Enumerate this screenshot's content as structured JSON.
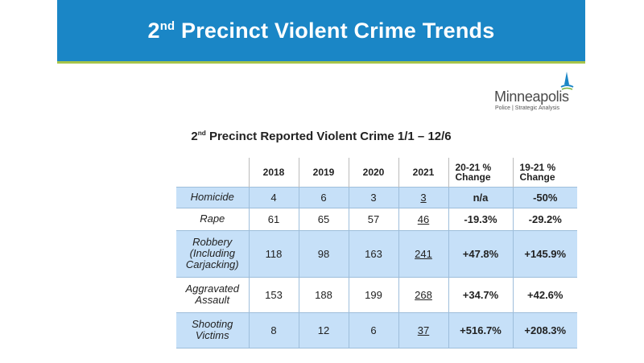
{
  "banner": {
    "title_pre": "2",
    "title_sup": "nd",
    "title_post": " Precinct Violent Crime Trends"
  },
  "logo": {
    "word": "Minneapolis",
    "tagline": "Police | Strategic Analysis"
  },
  "subtitle": {
    "pre": "2",
    "sup": "nd",
    "post": " Precinct Reported Violent Crime 1/1 – 12/6"
  },
  "table": {
    "headers": [
      "2018",
      "2019",
      "2020",
      "2021",
      "20-21 %",
      "Change",
      "19-21 %",
      "Change"
    ],
    "rows": [
      {
        "label": "Homicide",
        "v2018": "4",
        "v2019": "6",
        "v2020": "3",
        "v2021": "3",
        "chg2021": "n/a",
        "chg1921": "-50%"
      },
      {
        "label": "Rape",
        "v2018": "61",
        "v2019": "65",
        "v2020": "57",
        "v2021": "46",
        "chg2021": "-19.3%",
        "chg1921": "-29.2%"
      },
      {
        "label_l1": "Robbery",
        "label_l2": "(Including",
        "label_l3": "Carjacking)",
        "v2018": "118",
        "v2019": "98",
        "v2020": "163",
        "v2021": "241",
        "chg2021": "+47.8%",
        "chg1921": "+145.9%"
      },
      {
        "label_l1": "Aggravated",
        "label_l2": "Assault",
        "v2018": "153",
        "v2019": "188",
        "v2020": "199",
        "v2021": "268",
        "chg2021": "+34.7%",
        "chg1921": "+42.6%"
      },
      {
        "label_l1": "Shooting",
        "label_l2": "Victims",
        "v2018": "8",
        "v2019": "12",
        "v2020": "6",
        "v2021": "37",
        "chg2021": "+516.7%",
        "chg1921": "+208.3%"
      }
    ]
  }
}
